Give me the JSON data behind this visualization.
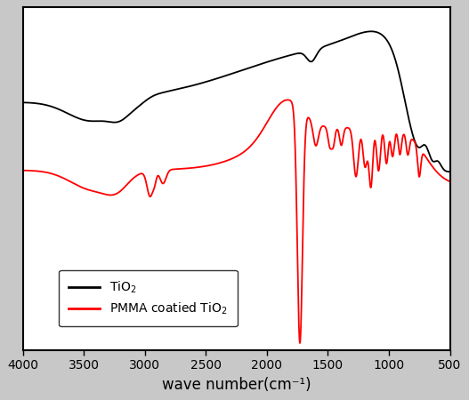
{
  "xlabel": "wave number(cm⁻¹)",
  "xlim": [
    4000,
    500
  ],
  "legend_labels": [
    "TiO$_2$",
    "PMMA coatied TiO$_2$"
  ],
  "legend_colors": [
    "black",
    "red"
  ],
  "background_color": "#ffffff",
  "fig_bg_color": "#c8c8c8",
  "xticks": [
    4000,
    3500,
    3000,
    2500,
    2000,
    1500,
    1000,
    500
  ],
  "xtick_labels": [
    "4000",
    "3500",
    "3000",
    "2500",
    "2000",
    "1500",
    "1000",
    "500"
  ]
}
